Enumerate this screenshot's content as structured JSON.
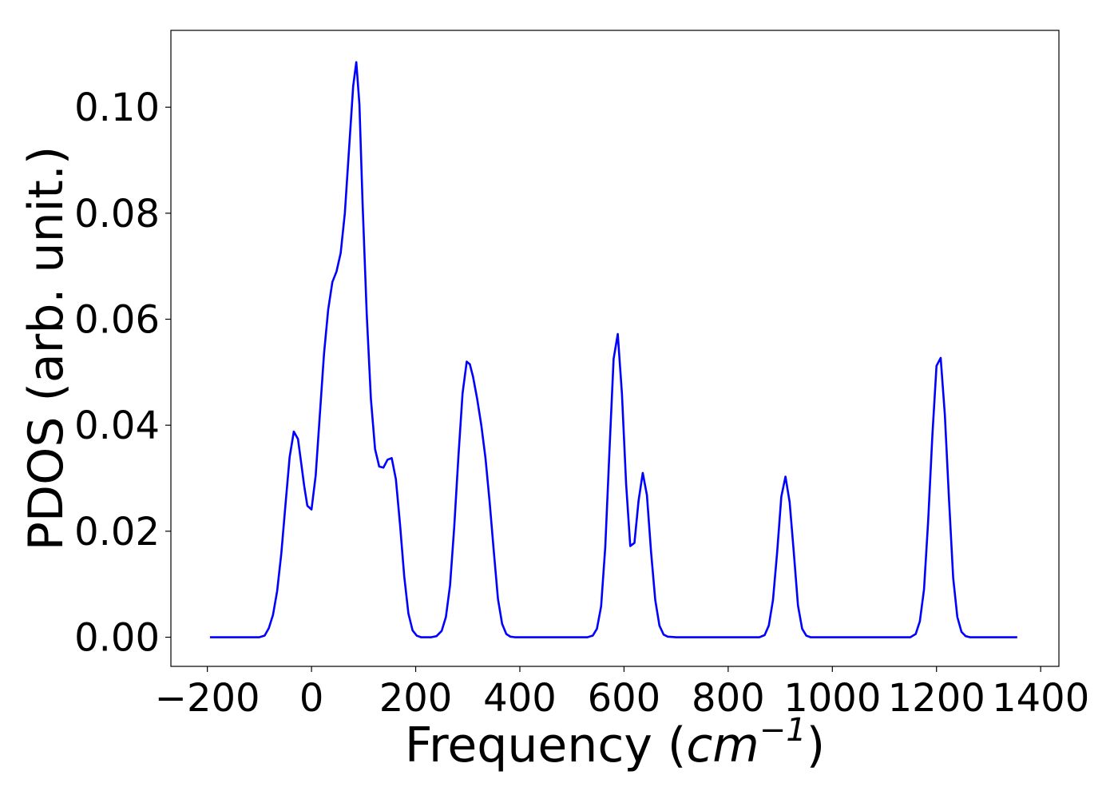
{
  "chart_data": {
    "type": "line",
    "title": "",
    "xlabel": "Frequency (cm⁻¹)",
    "xlabel_parts": {
      "prefix": "Frequency (",
      "unit_base": "cm",
      "unit_exp": "−1",
      "suffix": ")"
    },
    "ylabel": "PDOS (arb. unit.)",
    "xlim": [
      -270,
      1435
    ],
    "ylim": [
      -0.0055,
      0.1145
    ],
    "xticks": [
      -200,
      0,
      200,
      400,
      600,
      800,
      1000,
      1200,
      1400
    ],
    "xtick_labels": [
      "−200",
      "0",
      "200",
      "400",
      "600",
      "800",
      "1000",
      "1200",
      "1400"
    ],
    "yticks": [
      0.0,
      0.02,
      0.04,
      0.06,
      0.08,
      0.1
    ],
    "ytick_labels": [
      "0.00",
      "0.02",
      "0.04",
      "0.06",
      "0.08",
      "0.10"
    ],
    "grid": false,
    "legend": "none",
    "series": [
      {
        "color": "#0000ff",
        "x": [
          -195,
          -100,
          -90,
          -82,
          -74,
          -66,
          -58,
          -50,
          -42,
          -34,
          -26,
          -20,
          -14,
          -8,
          0,
          8,
          16,
          24,
          32,
          40,
          48,
          56,
          64,
          72,
          80,
          86,
          92,
          98,
          106,
          114,
          122,
          130,
          138,
          146,
          154,
          162,
          170,
          178,
          186,
          194,
          202,
          210,
          220,
          230,
          240,
          250,
          258,
          266,
          274,
          282,
          290,
          298,
          304,
          310,
          318,
          326,
          334,
          342,
          350,
          358,
          366,
          374,
          382,
          390,
          400,
          450,
          500,
          530,
          540,
          548,
          556,
          564,
          572,
          580,
          588,
          596,
          604,
          612,
          620,
          628,
          636,
          644,
          652,
          660,
          668,
          676,
          684,
          700,
          800,
          860,
          870,
          878,
          886,
          894,
          902,
          910,
          918,
          926,
          934,
          942,
          950,
          958,
          966,
          980,
          1100,
          1150,
          1160,
          1168,
          1176,
          1184,
          1192,
          1200,
          1208,
          1216,
          1224,
          1232,
          1240,
          1248,
          1256,
          1264,
          1272,
          1290,
          1355
        ],
        "y": [
          0.0,
          0.0,
          0.0003,
          0.0017,
          0.0042,
          0.0087,
          0.0158,
          0.025,
          0.034,
          0.0388,
          0.0374,
          0.033,
          0.0285,
          0.0248,
          0.0241,
          0.0305,
          0.042,
          0.0535,
          0.0618,
          0.067,
          0.069,
          0.0725,
          0.08,
          0.092,
          0.104,
          0.1085,
          0.1005,
          0.082,
          0.061,
          0.045,
          0.0355,
          0.0322,
          0.032,
          0.0335,
          0.0338,
          0.0298,
          0.0212,
          0.0115,
          0.0045,
          0.0013,
          0.0003,
          0.0,
          0.0,
          0.0,
          0.0002,
          0.0012,
          0.0038,
          0.0098,
          0.0208,
          0.034,
          0.046,
          0.052,
          0.0515,
          0.0492,
          0.045,
          0.04,
          0.0338,
          0.0255,
          0.0162,
          0.0072,
          0.0025,
          0.0006,
          0.0001,
          0.0,
          0.0,
          0.0,
          0.0,
          0.0,
          0.0003,
          0.0016,
          0.0058,
          0.017,
          0.035,
          0.0525,
          0.0572,
          0.046,
          0.029,
          0.0172,
          0.0178,
          0.0258,
          0.031,
          0.0268,
          0.016,
          0.007,
          0.0022,
          0.0005,
          0.0001,
          0.0,
          0.0,
          0.0,
          0.0004,
          0.0022,
          0.007,
          0.016,
          0.0265,
          0.0303,
          0.0255,
          0.016,
          0.006,
          0.0016,
          0.0003,
          0.0,
          0.0,
          0.0,
          0.0,
          0.0,
          0.0006,
          0.003,
          0.009,
          0.022,
          0.038,
          0.0512,
          0.0527,
          0.042,
          0.026,
          0.0112,
          0.0038,
          0.001,
          0.0002,
          0.0,
          0.0,
          0.0,
          0.0
        ]
      }
    ]
  }
}
